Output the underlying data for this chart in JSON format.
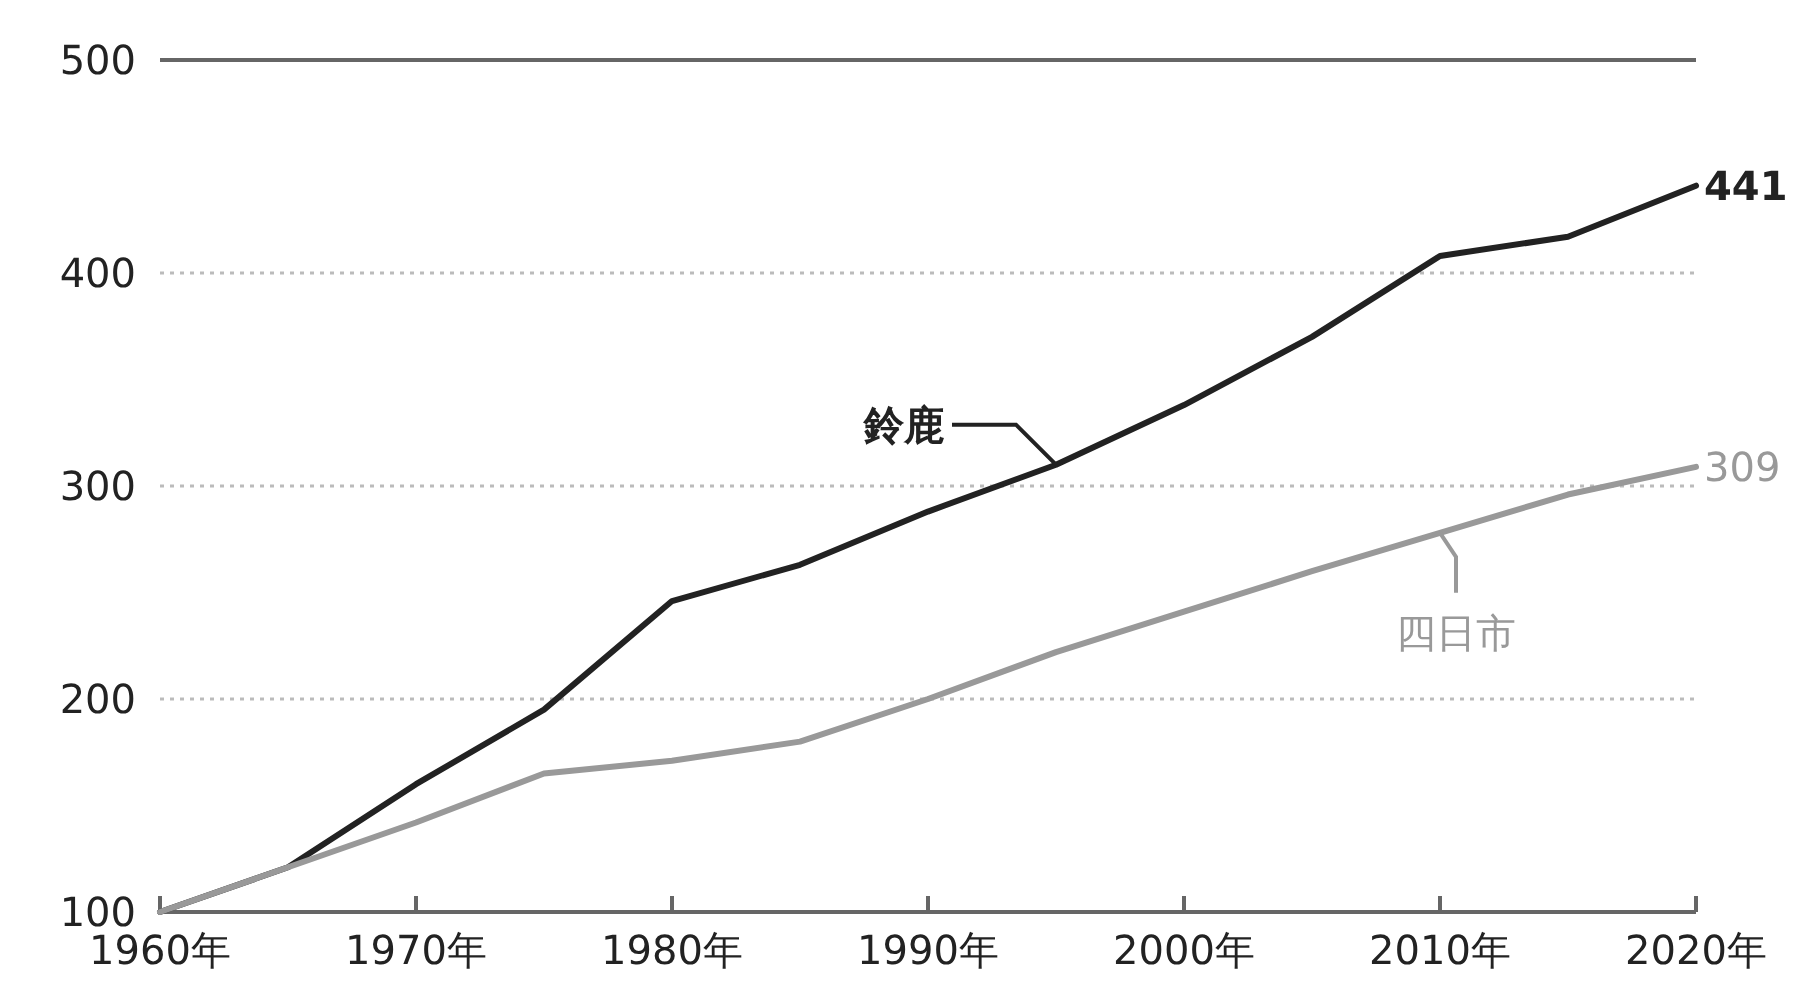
{
  "chart_data": {
    "type": "line",
    "x": [
      1960,
      1965,
      1970,
      1975,
      1980,
      1985,
      1990,
      1995,
      2000,
      2005,
      2010,
      2015,
      2020
    ],
    "series": [
      {
        "name": "鈴鹿",
        "color": "#222222",
        "values": [
          100,
          121,
          160,
          195,
          246,
          263,
          288,
          310,
          338,
          370,
          408,
          417,
          441
        ],
        "value_labels": [
          null,
          null,
          null,
          null,
          null,
          null,
          null,
          null,
          null,
          null,
          null,
          null,
          "441"
        ]
      },
      {
        "name": "四日市",
        "color": "#999999",
        "values": [
          100,
          121,
          142,
          165,
          171,
          180,
          200,
          222,
          241,
          260,
          278,
          296,
          309
        ],
        "value_labels": [
          null,
          null,
          null,
          null,
          null,
          null,
          null,
          null,
          null,
          null,
          null,
          null,
          "309"
        ]
      }
    ],
    "xlim": [
      1960,
      2020
    ],
    "xticks": [
      {
        "value": 1960,
        "label": "1960年"
      },
      {
        "value": 1970,
        "label": "1970年"
      },
      {
        "value": 1980,
        "label": "1980年"
      },
      {
        "value": 1990,
        "label": "1990年"
      },
      {
        "value": 2000,
        "label": "2000年"
      },
      {
        "value": 2010,
        "label": "2010年"
      },
      {
        "value": 2020,
        "label": "2020年"
      }
    ],
    "ylim": [
      100,
      500
    ],
    "yticks": [
      100,
      200,
      300,
      400,
      500
    ],
    "grid": "y",
    "marker": "none",
    "line_style": "solid"
  }
}
